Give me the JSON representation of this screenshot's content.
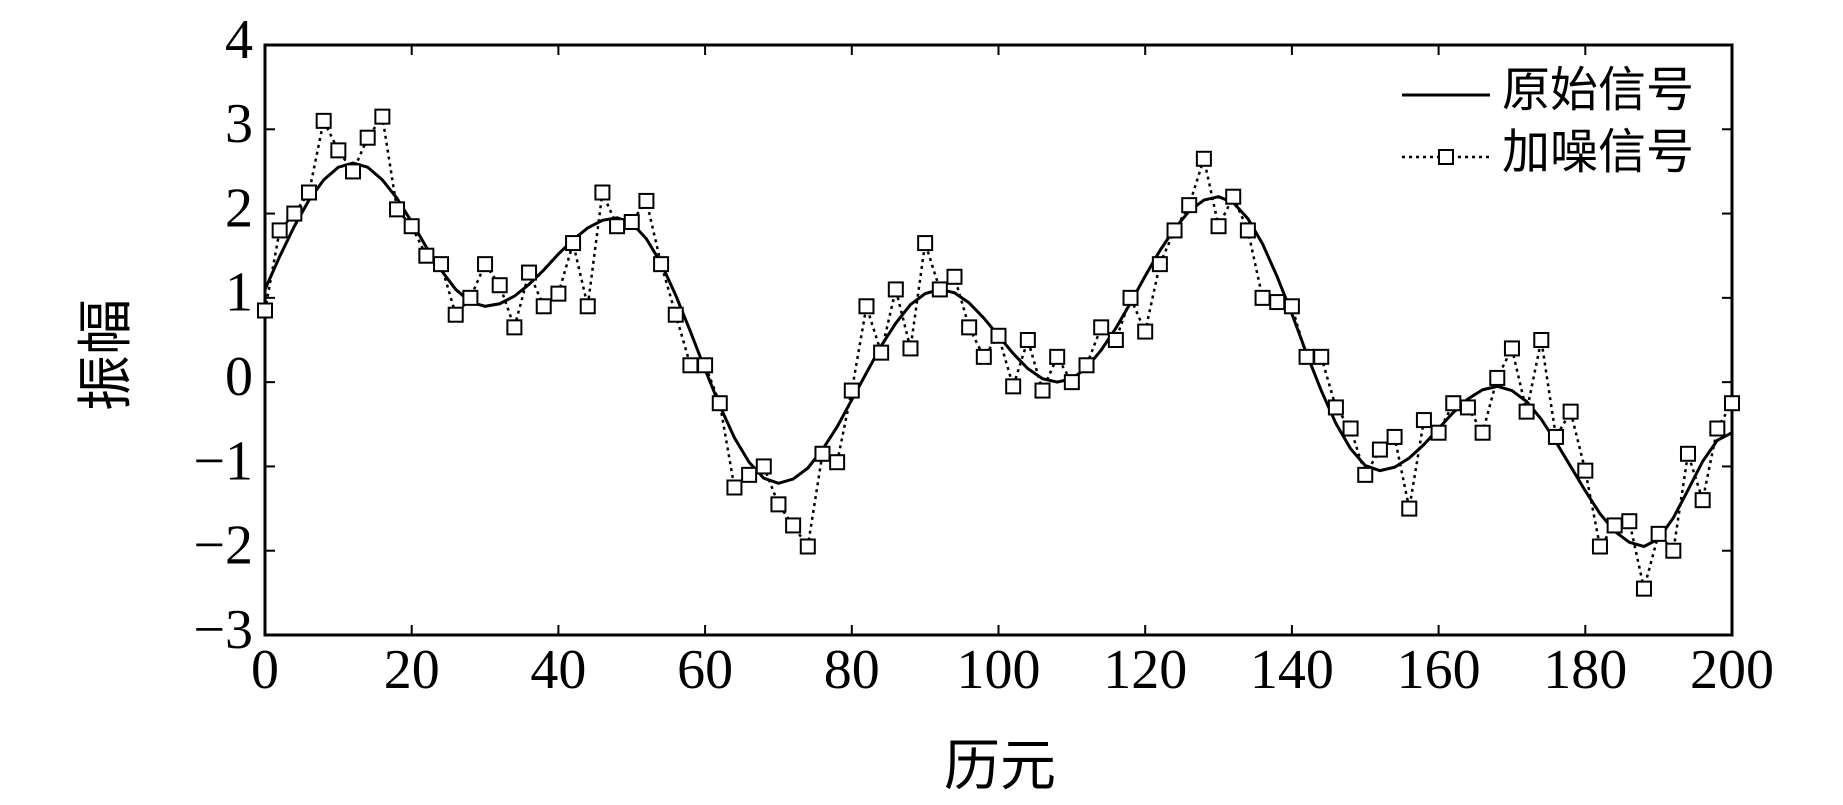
{
  "chart_data": {
    "type": "line",
    "xlabel": "历元",
    "ylabel": "振幅",
    "x": [
      0,
      2,
      4,
      6,
      8,
      10,
      12,
      14,
      16,
      18,
      20,
      22,
      24,
      26,
      28,
      30,
      32,
      34,
      36,
      38,
      40,
      42,
      44,
      46,
      48,
      50,
      52,
      54,
      56,
      58,
      60,
      62,
      64,
      66,
      68,
      70,
      72,
      74,
      76,
      78,
      80,
      82,
      84,
      86,
      88,
      90,
      92,
      94,
      96,
      98,
      100,
      102,
      104,
      106,
      108,
      110,
      112,
      114,
      116,
      118,
      120,
      122,
      124,
      126,
      128,
      130,
      132,
      134,
      136,
      138,
      140,
      142,
      144,
      146,
      148,
      150,
      152,
      154,
      156,
      158,
      160,
      162,
      164,
      166,
      168,
      170,
      172,
      174,
      176,
      178,
      180,
      182,
      184,
      186,
      188,
      190,
      192,
      194,
      196,
      198,
      200
    ],
    "series": [
      {
        "name": "原始信号",
        "color": "#000000",
        "style": "solid",
        "values": [
          1.1,
          1.49,
          1.85,
          2.16,
          2.4,
          2.55,
          2.6,
          2.55,
          2.4,
          2.18,
          1.9,
          1.6,
          1.33,
          1.1,
          0.95,
          0.9,
          0.93,
          1.02,
          1.16,
          1.33,
          1.52,
          1.69,
          1.83,
          1.92,
          1.95,
          1.89,
          1.7,
          1.41,
          1.03,
          0.6,
          0.15,
          -0.28,
          -0.66,
          -0.95,
          -1.14,
          -1.2,
          -1.15,
          -1.02,
          -0.8,
          -0.53,
          -0.21,
          0.11,
          0.43,
          0.7,
          0.92,
          1.05,
          1.1,
          1.06,
          0.94,
          0.76,
          0.55,
          0.34,
          0.16,
          0.04,
          0.0,
          0.04,
          0.17,
          0.38,
          0.64,
          0.94,
          1.26,
          1.56,
          1.82,
          2.03,
          2.16,
          2.2,
          2.13,
          1.94,
          1.64,
          1.25,
          0.81,
          0.34,
          -0.1,
          -0.49,
          -0.79,
          -0.99,
          -1.05,
          -1.01,
          -0.9,
          -0.74,
          -0.55,
          -0.36,
          -0.2,
          -0.09,
          -0.05,
          -0.1,
          -0.23,
          -0.44,
          -0.71,
          -1.0,
          -1.29,
          -1.56,
          -1.77,
          -1.9,
          -1.95,
          -1.86,
          -1.61,
          -1.28,
          -0.94,
          -0.69,
          -0.6
        ]
      },
      {
        "name": "加噪信号",
        "color": "#000000",
        "style": "dotted",
        "marker": "square",
        "values": [
          0.85,
          1.8,
          2.0,
          2.25,
          3.1,
          2.75,
          2.5,
          2.9,
          3.15,
          2.05,
          1.85,
          1.5,
          1.4,
          0.8,
          1.0,
          1.4,
          1.15,
          0.65,
          1.3,
          0.9,
          1.05,
          1.65,
          0.9,
          2.25,
          1.85,
          1.9,
          2.15,
          1.4,
          0.8,
          0.2,
          0.2,
          -0.25,
          -1.25,
          -1.1,
          -1.0,
          -1.45,
          -1.7,
          -1.95,
          -0.85,
          -0.95,
          -0.1,
          0.9,
          0.35,
          1.1,
          0.4,
          1.65,
          1.1,
          1.25,
          0.65,
          0.3,
          0.55,
          -0.05,
          0.5,
          -0.1,
          0.3,
          0.0,
          0.2,
          0.65,
          0.5,
          1.0,
          0.6,
          1.4,
          1.8,
          2.1,
          2.65,
          1.85,
          2.2,
          1.8,
          1.0,
          0.95,
          0.9,
          0.3,
          0.3,
          -0.3,
          -0.55,
          -1.1,
          -0.8,
          -0.65,
          -1.5,
          -0.45,
          -0.6,
          -0.25,
          -0.3,
          -0.6,
          0.05,
          0.4,
          -0.35,
          0.5,
          -0.65,
          -0.35,
          -1.05,
          -1.95,
          -1.7,
          -1.65,
          -2.45,
          -1.8,
          -2.0,
          -0.85,
          -1.4,
          -0.55,
          -0.25
        ]
      }
    ],
    "xlim": [
      0,
      200
    ],
    "xticks": [
      0,
      20,
      40,
      60,
      80,
      100,
      120,
      140,
      160,
      180,
      200
    ],
    "ylim": [
      -3,
      4
    ],
    "yticks": [
      {
        "value": -3,
        "label": "−3"
      },
      {
        "value": -2,
        "label": "−2"
      },
      {
        "value": -1,
        "label": "−1"
      },
      0,
      1,
      2,
      3,
      4
    ],
    "legend": "upper right",
    "grid": false
  }
}
